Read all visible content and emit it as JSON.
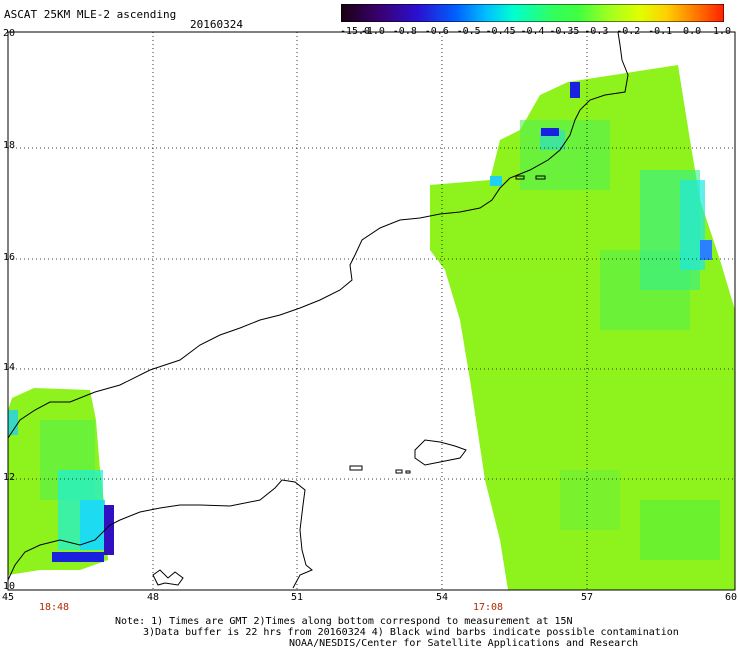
{
  "header": {
    "title": "ASCAT 25KM MLE-2 ascending",
    "date": "20160324"
  },
  "colorbar": {
    "labels": [
      "-15.0",
      "-1.0",
      "-0.8",
      "-0.6",
      "-0.5",
      "-0.45",
      "-0.4",
      "-0.35",
      "-0.3",
      "-0.2",
      "-0.1",
      "0.0",
      "1.0"
    ],
    "colors": [
      "#1a0010",
      "#3a0070",
      "#2a10d0",
      "#0060ff",
      "#00c0ff",
      "#00ffd0",
      "#30ff60",
      "#40ff40",
      "#a0ff20",
      "#e0ff00",
      "#ffd000",
      "#ff8000",
      "#ff2000"
    ]
  },
  "axes": {
    "lat_labels": [
      "20",
      "18",
      "16",
      "14",
      "12",
      "10"
    ],
    "lon_labels": [
      "45",
      "48",
      "51",
      "54",
      "57",
      "60"
    ]
  },
  "pass_times": {
    "left": "18:48",
    "right": "17:08"
  },
  "footer": {
    "line1": "Note: 1) Times are GMT 2)Times along bottom correspond to measurement at 15N",
    "line2": "3)Data buffer is 22 hrs from 20160324 4) Black wind barbs indicate possible contamination",
    "line3": "NOAA/NESDIS/Center for Satellite Applications and Research"
  }
}
